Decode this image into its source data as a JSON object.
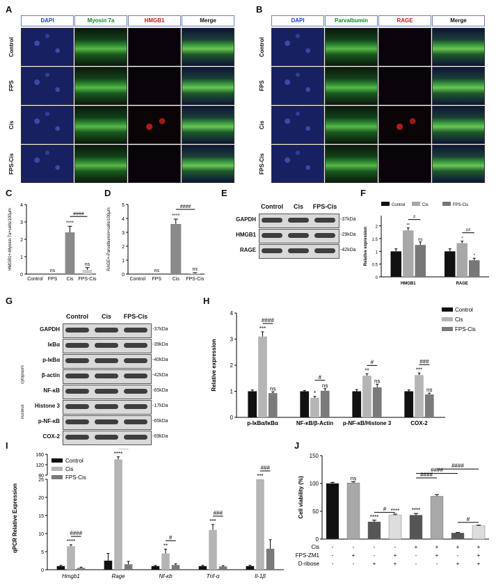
{
  "panels": {
    "A": {
      "letter": "A",
      "headers": [
        "DAPI",
        "Myosin 7a",
        "HMGB1",
        "Merge"
      ],
      "header_colors": [
        "#1a3fd0",
        "#0a8a20",
        "#d01818",
        "#111111"
      ],
      "rows": [
        "Control",
        "FPS",
        "Cis",
        "FPS-Cis"
      ]
    },
    "B": {
      "letter": "B",
      "headers": [
        "DAPI",
        "Parvalbumin",
        "RAGE",
        "Merge"
      ],
      "header_colors": [
        "#1a3fd0",
        "#0a8a20",
        "#d01818",
        "#111111"
      ],
      "rows": [
        "Control",
        "FPS",
        "Cis",
        "FPS-Cis"
      ]
    },
    "C": {
      "letter": "C"
    },
    "D": {
      "letter": "D"
    },
    "E": {
      "letter": "E",
      "columns": [
        "Control",
        "Cis",
        "FPS-Cis"
      ],
      "rows": [
        "GAPDH",
        "HMGB1",
        "RAGE"
      ],
      "sizes": [
        "-37kDa",
        "-29kDa",
        "-42kDa"
      ]
    },
    "F": {
      "letter": "F"
    },
    "G": {
      "letter": "G",
      "columns": [
        "Control",
        "Cis",
        "FPS-Cis"
      ],
      "rows": [
        "GAPDH",
        "IκBα",
        "p-IκBα",
        "β-actin",
        "NF-κB",
        "Histone 3",
        "p-NF-κB",
        "COX-2"
      ],
      "sizes": [
        "-37kDa",
        "-39kDa",
        "-40kDa",
        "-42kDa",
        "-65kDa",
        "-17kDa",
        "-65kDa",
        "-69kDa"
      ],
      "group_labels": [
        "cytoplasm",
        "nucleus"
      ]
    },
    "H": {
      "letter": "H"
    },
    "I": {
      "letter": "I"
    },
    "J": {
      "letter": "J",
      "table_rows": [
        {
          "label": "Cis",
          "marks": [
            "-",
            "-",
            "-",
            "-",
            "+",
            "+",
            "+",
            "+"
          ]
        },
        {
          "label": "FPS-ZM1",
          "marks": [
            "-",
            "+",
            "-",
            "+",
            "-",
            "+",
            "-",
            "+"
          ]
        },
        {
          "label": "D-ribose",
          "marks": [
            "-",
            "-",
            "+",
            "+",
            "-",
            "-",
            "+",
            "+"
          ]
        }
      ]
    }
  },
  "chart_data": [
    {
      "id": "C",
      "type": "bar",
      "categories": [
        "Control",
        "FPS",
        "Cis",
        "FPS-Cis"
      ],
      "values": [
        0,
        0,
        2.4,
        0.25
      ],
      "errors": [
        0,
        0,
        0.35,
        0.12
      ],
      "colors": [
        "#222222",
        "#222222",
        "#8a8a8a",
        "#cccccc"
      ],
      "ylabel": "HMGB1+-Myosin 7a+cells/100μm",
      "ylim": [
        0,
        4
      ],
      "yticks": [
        0,
        1,
        2,
        3,
        4
      ],
      "sig": [
        "",
        "ns",
        "****",
        "ns"
      ],
      "brackets": [
        {
          "from": 2,
          "to": 3,
          "label": "####"
        }
      ]
    },
    {
      "id": "D",
      "type": "bar",
      "categories": [
        "Control",
        "FPS",
        "Cis",
        "FPS-Cis"
      ],
      "values": [
        0,
        0,
        3.6,
        0.05
      ],
      "errors": [
        0,
        0,
        0.35,
        0.05
      ],
      "colors": [
        "#222222",
        "#222222",
        "#8a8a8a",
        "#cccccc"
      ],
      "ylabel": "RAGE+-Parvalbumin+cells/100μm",
      "ylim": [
        0,
        5
      ],
      "yticks": [
        0,
        1,
        2,
        3,
        4,
        5
      ],
      "sig": [
        "",
        "ns",
        "****",
        "ns"
      ],
      "brackets": [
        {
          "from": 2,
          "to": 3,
          "label": "####"
        }
      ]
    },
    {
      "id": "F",
      "type": "bar",
      "categories": [
        "HMGB1",
        "RAGE"
      ],
      "series": [
        {
          "name": "Control",
          "values": [
            1.0,
            1.0
          ],
          "errors": [
            0.1,
            0.1
          ],
          "color": "#111111"
        },
        {
          "name": "Cis",
          "values": [
            1.82,
            1.32
          ],
          "errors": [
            0.1,
            0.08
          ],
          "color": "#a8a8a8"
        },
        {
          "name": "FPS-Cis",
          "values": [
            1.25,
            0.65
          ],
          "errors": [
            0.12,
            0.08
          ],
          "color": "#777777"
        }
      ],
      "ylabel": "Relative expression",
      "ylim": [
        0,
        2.4
      ],
      "yticks": [
        0.0,
        0.5,
        1.0,
        1.5,
        2.0
      ],
      "sig": [
        [
          "",
          "**",
          "ns"
        ],
        [
          "",
          "*",
          "*"
        ]
      ],
      "brackets": [
        {
          "group": 0,
          "label": "#"
        },
        {
          "group": 1,
          "label": "##"
        }
      ]
    },
    {
      "id": "H",
      "type": "bar",
      "categories": [
        "p-IκBα/IκBα",
        "NF-κB/β-Actin",
        "p-NF-κB/Histone 3",
        "COX-2"
      ],
      "series": [
        {
          "name": "Control",
          "values": [
            1.0,
            1.0,
            1.0,
            1.0
          ],
          "errors": [
            0.05,
            0.03,
            0.07,
            0.05
          ],
          "color": "#111111"
        },
        {
          "name": "Cis",
          "values": [
            3.1,
            0.75,
            1.6,
            1.62
          ],
          "errors": [
            0.18,
            0.05,
            0.07,
            0.08
          ],
          "color": "#b5b5b5"
        },
        {
          "name": "FPS-Cis",
          "values": [
            0.93,
            1.02,
            1.15,
            0.88
          ],
          "errors": [
            0.05,
            0.08,
            0.12,
            0.05
          ],
          "color": "#7a7a7a"
        }
      ],
      "ylabel": "Relative expression",
      "ylim": [
        0,
        4
      ],
      "yticks": [
        0,
        1,
        2,
        3,
        4
      ],
      "sig": [
        [
          "",
          "***",
          "ns"
        ],
        [
          "",
          "*",
          "ns"
        ],
        [
          "",
          "**",
          "ns"
        ],
        [
          "",
          "***",
          "ns"
        ]
      ],
      "brackets": [
        {
          "group": 0,
          "label": "####"
        },
        {
          "group": 1,
          "label": "#"
        },
        {
          "group": 2,
          "label": "#"
        },
        {
          "group": 3,
          "label": "###"
        }
      ]
    },
    {
      "id": "I",
      "type": "bar",
      "categories": [
        "Hmgb1",
        "Rage",
        "Nf-κb",
        "Tnf-α",
        "Il-1β"
      ],
      "series": [
        {
          "name": "Control",
          "values": [
            1,
            2.5,
            1,
            1,
            1
          ],
          "errors": [
            0.2,
            2.0,
            0.2,
            0.2,
            0.2
          ],
          "color": "#111111"
        },
        {
          "name": "Cis",
          "values": [
            6.5,
            140,
            4.5,
            11,
            25
          ],
          "errors": [
            0.4,
            10,
            1.2,
            1.5,
            0
          ],
          "color": "#b5b5b5"
        },
        {
          "name": "FPS-Cis",
          "values": [
            0.5,
            1.5,
            1.3,
            0.9,
            5.8
          ],
          "errors": [
            0.2,
            0.8,
            0.3,
            0.2,
            2.5
          ],
          "color": "#7a7a7a"
        }
      ],
      "ylabel": "qPCR Relative Expression",
      "ylim": [
        0,
        160
      ],
      "yticks_low": [
        0,
        5,
        10,
        15,
        20,
        25
      ],
      "yticks_high": [
        80,
        120,
        160
      ],
      "sig": [
        [
          "",
          "****",
          ""
        ],
        [
          "",
          "****",
          ""
        ],
        [
          "",
          "**",
          ""
        ],
        [
          "",
          "***",
          ""
        ],
        [
          "",
          "***",
          ""
        ]
      ],
      "brackets": [
        {
          "group": 0,
          "label": "####"
        },
        {
          "group": 1,
          "label": "####"
        },
        {
          "group": 2,
          "label": "#"
        },
        {
          "group": 3,
          "label": "###"
        },
        {
          "group": 4,
          "label": "###"
        }
      ]
    },
    {
      "id": "J",
      "type": "bar",
      "values": [
        100,
        101,
        31,
        43,
        43,
        77,
        11,
        24
      ],
      "errors": [
        2,
        2,
        3,
        2,
        3,
        3,
        1,
        1
      ],
      "colors": [
        "#111111",
        "#a8a8a8",
        "#555555",
        "#dddddd",
        "#555555",
        "#a8a8a8",
        "#555555",
        "#dddddd"
      ],
      "ylabel": "Cell viability (%)",
      "ylim": [
        0,
        150
      ],
      "yticks": [
        0,
        50,
        100,
        150
      ],
      "sig": [
        "",
        "ns",
        "****",
        "****",
        "****",
        "",
        "",
        ""
      ],
      "brackets": [
        {
          "from": 2,
          "to": 3,
          "label": "#"
        },
        {
          "from": 4,
          "to": 5,
          "label": "####"
        },
        {
          "from": 4,
          "to": 6,
          "label": "####"
        },
        {
          "from": 5,
          "to": 7,
          "label": "####"
        },
        {
          "from": 6,
          "to": 7,
          "label": "#"
        }
      ]
    }
  ]
}
